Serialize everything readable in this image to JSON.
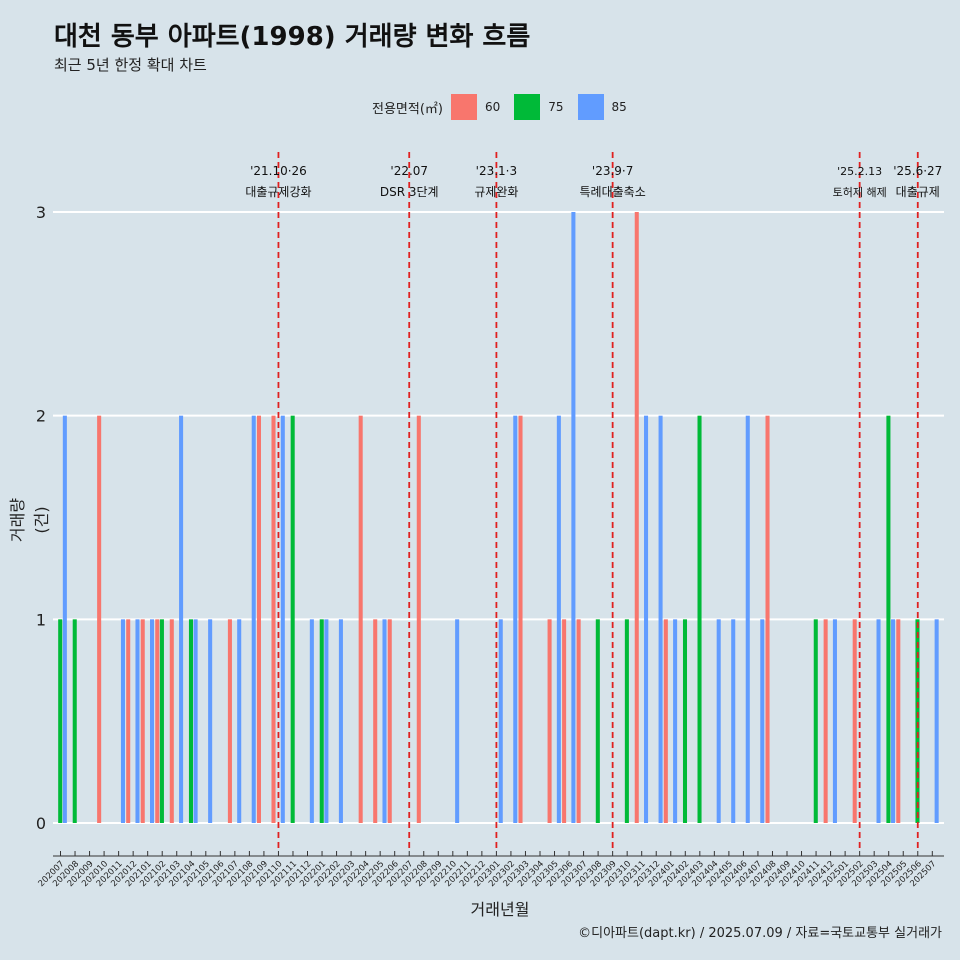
{
  "title": "대천 동부 아파트(1998) 거래량 변화 흐름",
  "subtitle": "최근 5년 한정 확대 차트",
  "caption": "©디아파트(dapt.kr) / 2025.07.09 / 자료=국토교통부 실거래가",
  "legend": {
    "title": "전용면적(㎡)",
    "items": [
      {
        "label": "60",
        "color": "#F8766D"
      },
      {
        "label": "75",
        "color": "#00BA38"
      },
      {
        "label": "85",
        "color": "#619CFF"
      }
    ]
  },
  "chart_data": {
    "type": "bar",
    "xlabel": "거래년월",
    "ylabel": "거래량(건)",
    "ylim": [
      0,
      3
    ],
    "yticks": [
      0,
      1,
      2,
      3
    ],
    "grid": true,
    "legend_position": "top",
    "months": [
      "202007",
      "202008",
      "202009",
      "202010",
      "202011",
      "202012",
      "202101",
      "202102",
      "202103",
      "202104",
      "202105",
      "202106",
      "202107",
      "202108",
      "202109",
      "202110",
      "202111",
      "202112",
      "202201",
      "202202",
      "202203",
      "202204",
      "202205",
      "202206",
      "202207",
      "202208",
      "202209",
      "202210",
      "202211",
      "202212",
      "202301",
      "202302",
      "202303",
      "202304",
      "202305",
      "202306",
      "202307",
      "202308",
      "202309",
      "202310",
      "202311",
      "202312",
      "202401",
      "202402",
      "202403",
      "202404",
      "202405",
      "202406",
      "202407",
      "202408",
      "202409",
      "202410",
      "202411",
      "202412",
      "202501",
      "202502",
      "202503",
      "202504",
      "202505",
      "202506",
      "202507"
    ],
    "series": [
      {
        "name": "60",
        "color": "#F8766D",
        "values": [
          0,
          0,
          0,
          2,
          0,
          1,
          1,
          1,
          1,
          0,
          0,
          0,
          1,
          0,
          2,
          2,
          0,
          0,
          0,
          0,
          0,
          2,
          1,
          1,
          0,
          2,
          0,
          0,
          0,
          0,
          0,
          0,
          2,
          0,
          1,
          1,
          1,
          0,
          0,
          0,
          3,
          0,
          1,
          0,
          0,
          0,
          0,
          0,
          0,
          2,
          0,
          0,
          0,
          1,
          0,
          1,
          0,
          0,
          1,
          0,
          0
        ]
      },
      {
        "name": "75",
        "color": "#00BA38",
        "values": [
          1,
          1,
          0,
          0,
          0,
          0,
          0,
          1,
          0,
          1,
          0,
          0,
          0,
          0,
          0,
          0,
          2,
          0,
          1,
          0,
          0,
          0,
          0,
          0,
          0,
          0,
          0,
          0,
          0,
          0,
          0,
          0,
          0,
          0,
          0,
          0,
          0,
          1,
          0,
          1,
          0,
          0,
          0,
          1,
          2,
          0,
          0,
          0,
          0,
          0,
          0,
          0,
          1,
          0,
          0,
          0,
          0,
          2,
          0,
          1,
          0
        ]
      },
      {
        "name": "85",
        "color": "#619CFF",
        "values": [
          2,
          0,
          0,
          0,
          1,
          1,
          1,
          0,
          2,
          1,
          1,
          0,
          1,
          2,
          0,
          2,
          0,
          1,
          1,
          1,
          0,
          0,
          1,
          0,
          0,
          0,
          0,
          1,
          0,
          0,
          1,
          2,
          0,
          0,
          2,
          3,
          0,
          0,
          0,
          0,
          2,
          2,
          1,
          0,
          0,
          1,
          1,
          2,
          1,
          0,
          0,
          0,
          0,
          1,
          0,
          0,
          1,
          1,
          0,
          0,
          1
        ]
      }
    ],
    "annotations": [
      {
        "month": "202110",
        "date": "'21.10·26",
        "label": "대출규제강화"
      },
      {
        "month": "202207",
        "date": "'22.07",
        "label": "DSR 3단계"
      },
      {
        "month": "202301",
        "date": "'23.1·3",
        "label": "규제완화"
      },
      {
        "month": "202309",
        "date": "'23.9·7",
        "label": "특례대출축소"
      },
      {
        "month": "202502",
        "date": "'25.2.13",
        "label": "토허제 해제"
      },
      {
        "month": "202506",
        "date": "'25.6·27",
        "label": "대출규제"
      }
    ]
  }
}
